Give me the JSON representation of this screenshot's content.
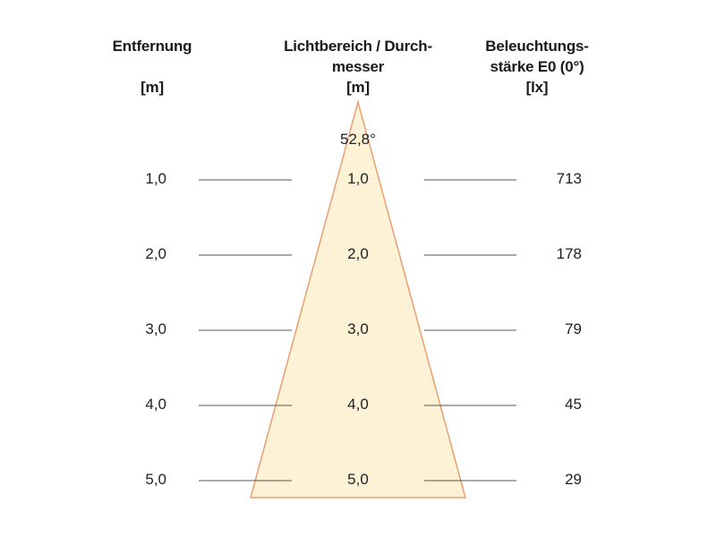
{
  "headers": {
    "distance": [
      "Entfernung",
      "",
      "[m]"
    ],
    "beam": [
      "Lichtbereich / Durch-",
      "messer",
      "[m]"
    ],
    "illuminance": [
      "Beleuchtungs-",
      "stärke E0 (0°)",
      "[lx]"
    ]
  },
  "angle": "52,8°",
  "rows": [
    {
      "distance": "1,0",
      "diameter": "1,0",
      "lux": "713"
    },
    {
      "distance": "2,0",
      "diameter": "2,0",
      "lux": "178"
    },
    {
      "distance": "3,0",
      "diameter": "3,0",
      "lux": "79"
    },
    {
      "distance": "4,0",
      "diameter": "4,0",
      "lux": "45"
    },
    {
      "distance": "5,0",
      "diameter": "5,0",
      "lux": "29"
    }
  ],
  "colors": {
    "cone_fill": "#fdf1d6",
    "cone_stroke": "#e8a070",
    "line": "#555555"
  }
}
